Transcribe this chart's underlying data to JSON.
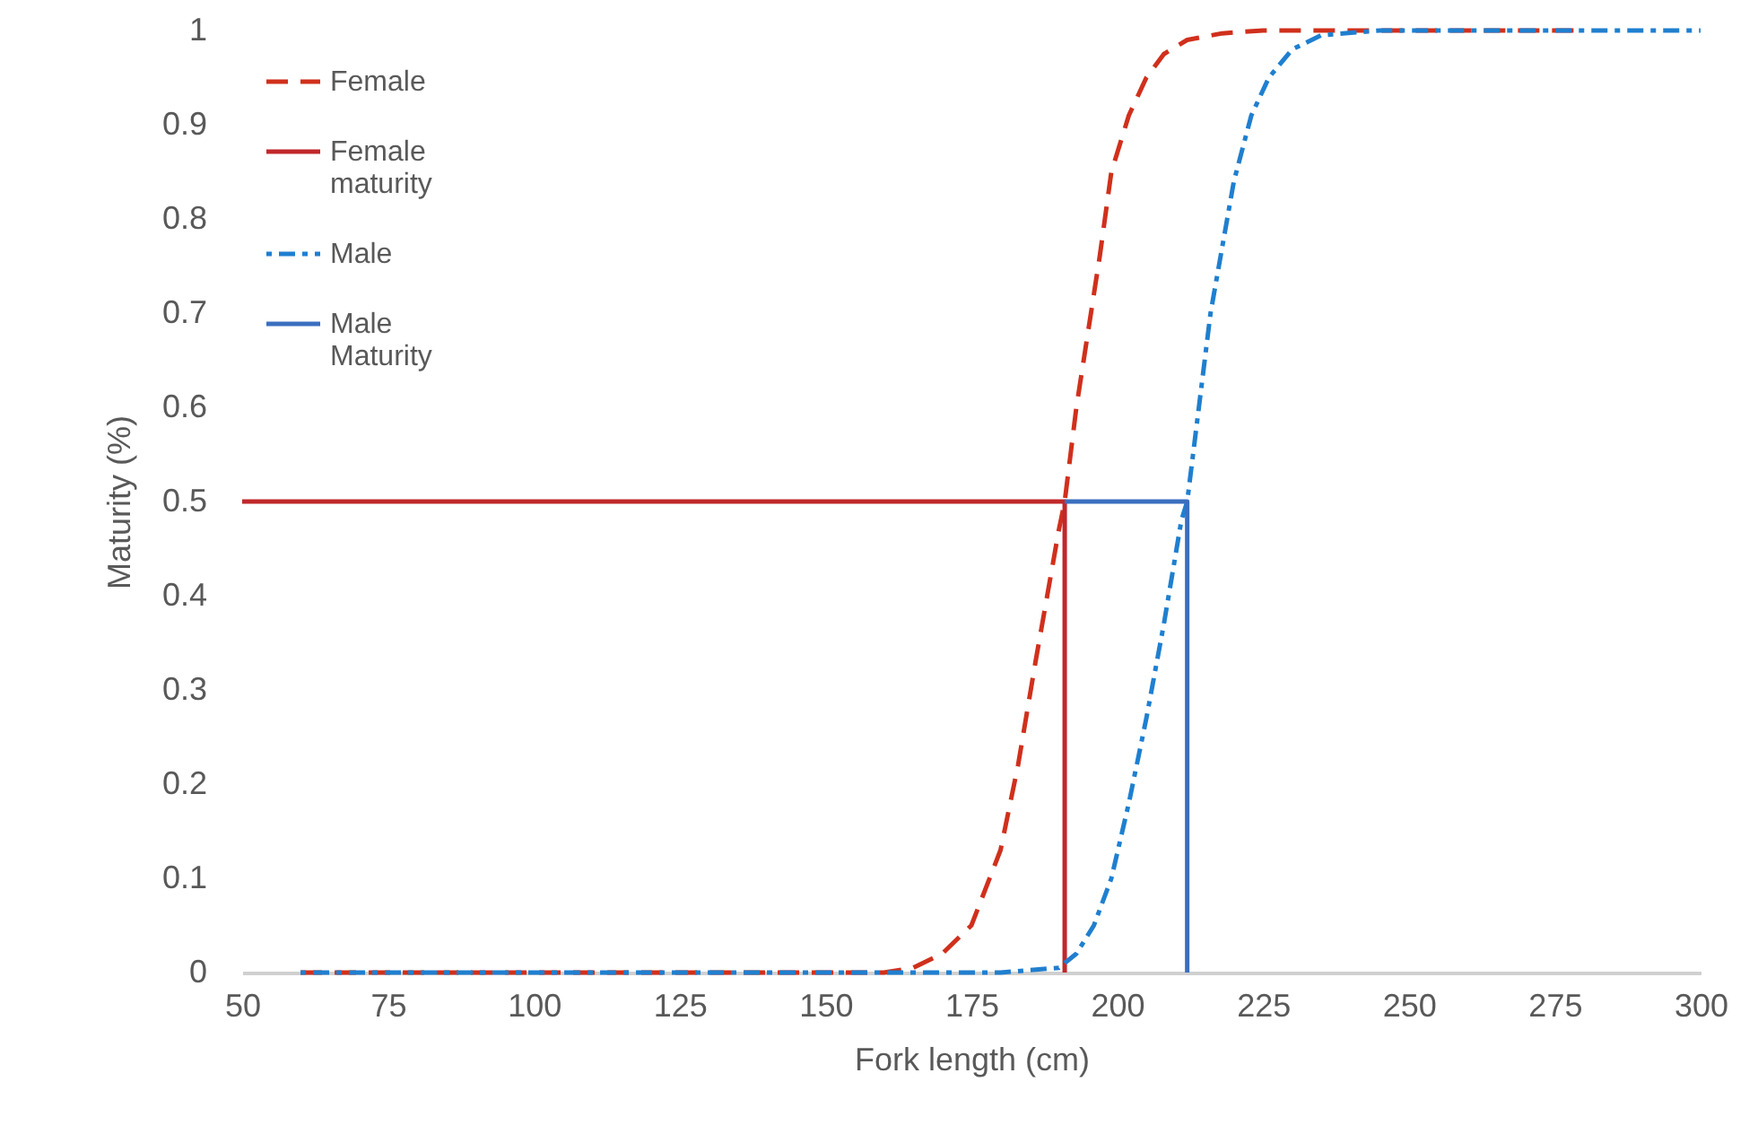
{
  "chart_data": {
    "type": "line",
    "xlabel": "Fork length (cm)",
    "ylabel": "Maturity (%)",
    "xlim": [
      50,
      300
    ],
    "xticks": [
      50,
      75,
      100,
      125,
      150,
      175,
      200,
      225,
      250,
      275,
      300
    ],
    "ylim": [
      0,
      1
    ],
    "yticks": [
      0,
      0.1,
      0.2,
      0.3,
      0.4,
      0.5,
      0.6,
      0.7,
      0.8,
      0.9,
      1
    ],
    "grid": false,
    "legend": "top left",
    "series": [
      {
        "name": "Female",
        "color": "#d0301c",
        "line_style": "dashed",
        "x": [
          60,
          100,
          140,
          160,
          165,
          170,
          175,
          180,
          183,
          186,
          188,
          190,
          191,
          193,
          195,
          197,
          199,
          202,
          205,
          208,
          212,
          218,
          225,
          250,
          280
        ],
        "values": [
          0,
          0,
          0,
          0,
          0.005,
          0.02,
          0.05,
          0.13,
          0.22,
          0.33,
          0.4,
          0.47,
          0.5,
          0.6,
          0.68,
          0.76,
          0.85,
          0.91,
          0.95,
          0.975,
          0.99,
          0.997,
          1,
          1,
          1
        ]
      },
      {
        "name": "Female maturity",
        "color": "#c0282a",
        "line_style": "solid",
        "x": [
          50,
          191,
          191
        ],
        "values": [
          0.5,
          0.5,
          0
        ]
      },
      {
        "name": "Male",
        "color": "#1f7fcf",
        "line_style": "dotted",
        "x": [
          60,
          100,
          140,
          180,
          190,
          193,
          196,
          199,
          202,
          205,
          208,
          211,
          212,
          214,
          216,
          218,
          220,
          223,
          226,
          230,
          235,
          245,
          270,
          300
        ],
        "values": [
          0,
          0,
          0,
          0,
          0.005,
          0.02,
          0.05,
          0.1,
          0.18,
          0.27,
          0.37,
          0.48,
          0.5,
          0.6,
          0.7,
          0.77,
          0.84,
          0.91,
          0.95,
          0.98,
          0.995,
          1,
          1,
          1
        ]
      },
      {
        "name": "Male Maturity",
        "color": "#3a6fbf",
        "line_style": "solid",
        "x": [
          191,
          212,
          212
        ],
        "values": [
          0.5,
          0.5,
          0
        ]
      }
    ]
  }
}
